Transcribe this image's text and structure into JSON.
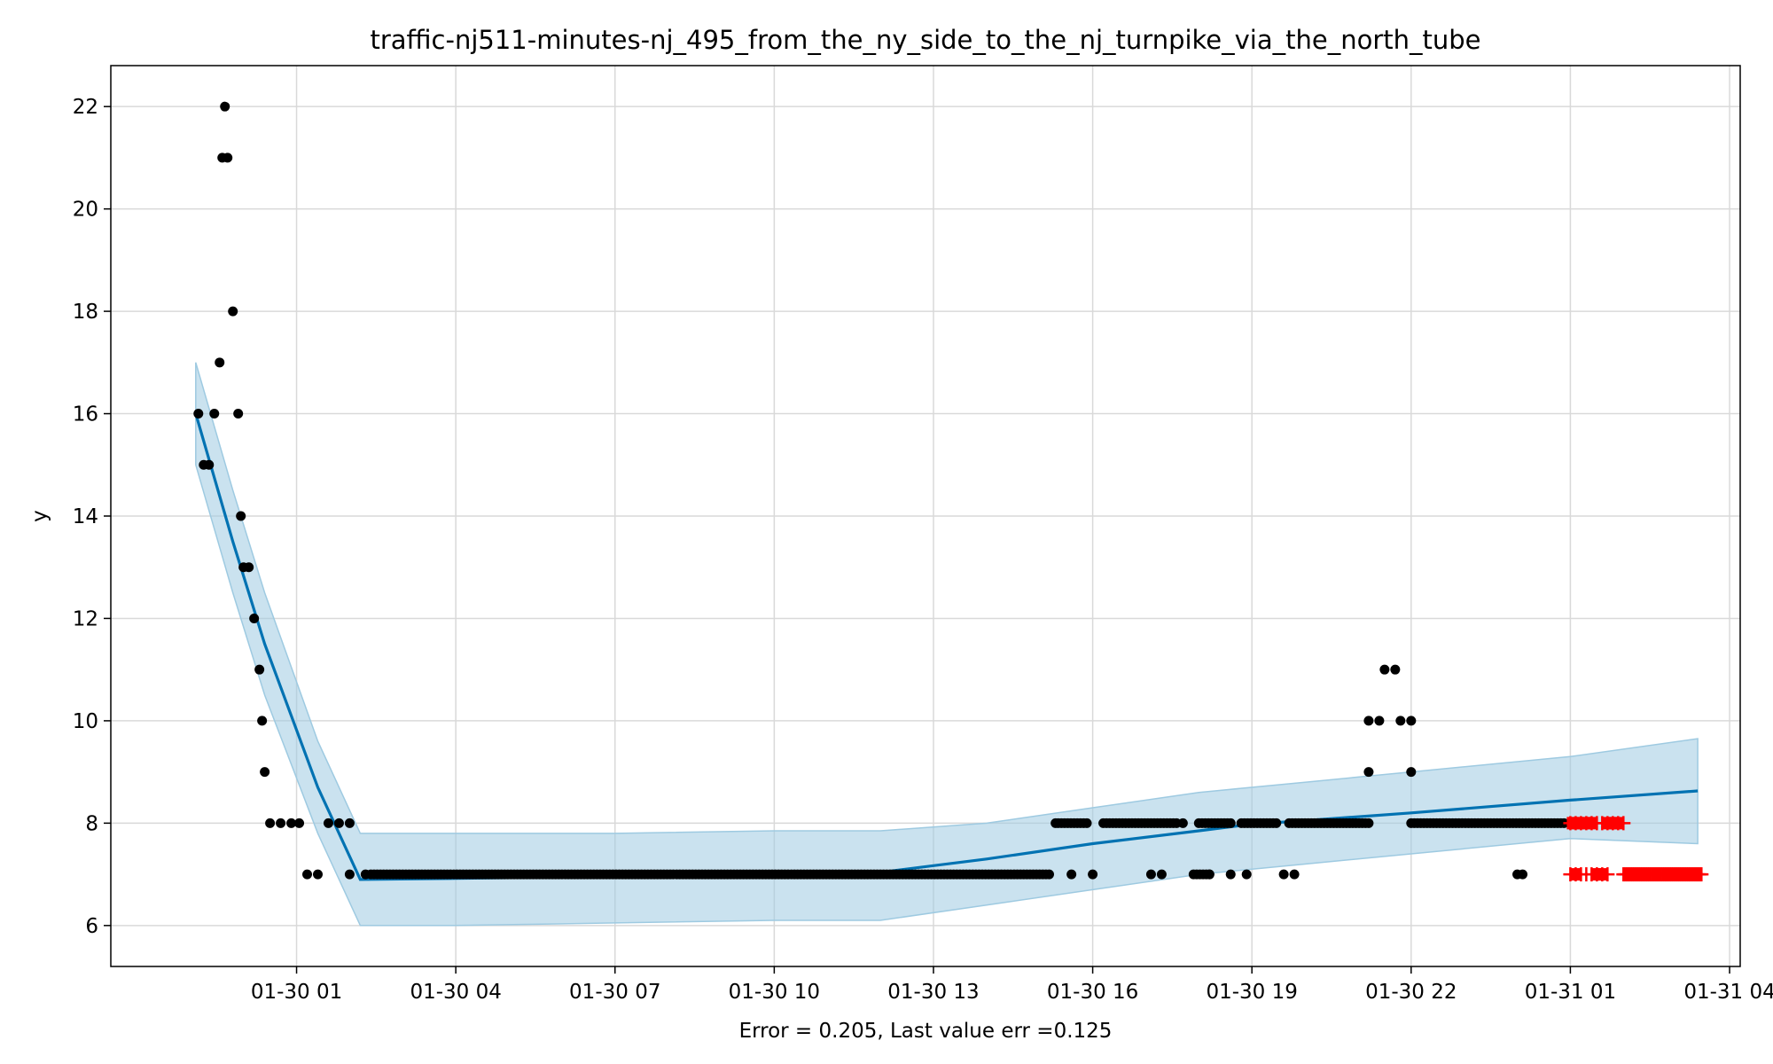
{
  "chart_data": {
    "type": "scatter",
    "title": "traffic-nj511-minutes-nj_495_from_the_ny_side_to_the_nj_turnpike_via_the_north_tube",
    "xlabel": "Error = 0.205, Last value err =0.125",
    "ylabel": "y",
    "x_unit": "hours after 01-30 00:00",
    "xlim": [
      -2.5,
      28.2
    ],
    "ylim": [
      5.2,
      22.8
    ],
    "x_ticks": [
      {
        "value": 1,
        "label": "01-30 01"
      },
      {
        "value": 4,
        "label": "01-30 04"
      },
      {
        "value": 7,
        "label": "01-30 07"
      },
      {
        "value": 10,
        "label": "01-30 10"
      },
      {
        "value": 13,
        "label": "01-30 13"
      },
      {
        "value": 16,
        "label": "01-30 16"
      },
      {
        "value": 19,
        "label": "01-30 19"
      },
      {
        "value": 22,
        "label": "01-30 22"
      },
      {
        "value": 25,
        "label": "01-31 01"
      },
      {
        "value": 28,
        "label": "01-31 04"
      }
    ],
    "y_ticks": [
      {
        "value": 6,
        "label": "6"
      },
      {
        "value": 8,
        "label": "8"
      },
      {
        "value": 10,
        "label": "10"
      },
      {
        "value": 12,
        "label": "12"
      },
      {
        "value": 14,
        "label": "14"
      },
      {
        "value": 16,
        "label": "16"
      },
      {
        "value": 18,
        "label": "18"
      },
      {
        "value": 20,
        "label": "20"
      },
      {
        "value": 22,
        "label": "22"
      }
    ],
    "grid": true,
    "colors": {
      "forecast_line": "#0072B2",
      "band": "#9ecae1",
      "observed": "#000000",
      "future": "#ff0000",
      "grid": "#d9d9d9"
    },
    "forecast": {
      "x": [
        -0.9,
        -0.2,
        0.4,
        1.4,
        2.2,
        4,
        7,
        10,
        12,
        14,
        16,
        18,
        19,
        20,
        22,
        25,
        27.4
      ],
      "y": [
        16.0,
        13.5,
        11.5,
        8.7,
        6.9,
        6.92,
        6.96,
        7.0,
        7.04,
        7.3,
        7.6,
        7.85,
        7.98,
        8.05,
        8.2,
        8.45,
        8.63
      ]
    },
    "band": {
      "x": [
        -0.9,
        -0.2,
        0.4,
        1.4,
        2.2,
        4,
        7,
        10,
        12,
        14,
        16,
        18,
        20,
        22,
        25,
        27.4
      ],
      "upper": [
        17.0,
        14.5,
        12.5,
        9.6,
        7.8,
        7.8,
        7.8,
        7.85,
        7.85,
        8.0,
        8.3,
        8.6,
        8.8,
        9.0,
        9.3,
        9.65
      ],
      "lower": [
        15.0,
        12.5,
        10.5,
        7.8,
        6.0,
        6.0,
        6.05,
        6.1,
        6.1,
        6.4,
        6.7,
        7.0,
        7.2,
        7.4,
        7.7,
        7.6
      ]
    },
    "series": [
      {
        "name": "",
        "points": [
          [
            -0.85,
            16
          ],
          [
            -0.75,
            15
          ],
          [
            -0.65,
            15
          ],
          [
            -0.55,
            16
          ],
          [
            -0.45,
            17
          ],
          [
            -0.35,
            22
          ],
          [
            -0.4,
            21
          ],
          [
            -0.3,
            21
          ],
          [
            -0.2,
            18
          ],
          [
            -0.1,
            16
          ],
          [
            -0.05,
            14
          ],
          [
            0.0,
            13
          ],
          [
            0.1,
            13
          ],
          [
            0.2,
            12
          ],
          [
            0.3,
            11
          ],
          [
            0.35,
            10
          ],
          [
            0.4,
            9
          ],
          [
            0.5,
            8
          ],
          [
            0.7,
            8
          ],
          [
            0.9,
            8
          ],
          [
            1.05,
            8
          ],
          [
            1.2,
            7
          ],
          [
            1.4,
            7
          ],
          [
            1.6,
            8
          ],
          [
            1.8,
            8
          ],
          [
            2.0,
            8
          ],
          [
            2.0,
            7
          ],
          [
            2.3,
            7
          ],
          [
            15.3,
            8
          ],
          [
            15.6,
            7
          ],
          [
            16.0,
            7
          ],
          [
            17.1,
            7
          ],
          [
            17.3,
            7
          ],
          [
            17.7,
            8
          ],
          [
            18.2,
            7
          ],
          [
            18.6,
            7
          ],
          [
            18.9,
            7
          ],
          [
            19.6,
            7
          ],
          [
            19.8,
            7
          ],
          [
            21.2,
            9
          ],
          [
            21.2,
            10
          ],
          [
            21.4,
            10
          ],
          [
            21.5,
            11
          ],
          [
            21.7,
            11
          ],
          [
            21.8,
            10
          ],
          [
            22.0,
            10
          ],
          [
            22.0,
            9
          ],
          [
            24.0,
            7
          ],
          [
            24.1,
            7
          ]
        ],
        "runs": [
          {
            "from": 2.4,
            "to": 15.2,
            "y": 7
          },
          {
            "from": 15.35,
            "to": 15.9,
            "y": 8
          },
          {
            "from": 16.2,
            "to": 17.6,
            "y": 8
          },
          {
            "from": 17.9,
            "to": 18.2,
            "y": 7
          },
          {
            "from": 18.0,
            "to": 18.6,
            "y": 8
          },
          {
            "from": 18.8,
            "to": 19.5,
            "y": 8
          },
          {
            "from": 19.7,
            "to": 21.2,
            "y": 8
          },
          {
            "from": 22.0,
            "to": 24.9,
            "y": 8
          }
        ]
      },
      {
        "name": "",
        "marker": "+",
        "color": "#ff0000",
        "points": [
          [
            25.05,
            8
          ],
          [
            25.15,
            8
          ],
          [
            25.3,
            8
          ],
          [
            25.4,
            8
          ],
          [
            25.7,
            8
          ],
          [
            25.8,
            8
          ],
          [
            25.9,
            8
          ],
          [
            25.1,
            7
          ],
          [
            25.5,
            7
          ],
          [
            25.6,
            7
          ]
        ],
        "runs": [
          {
            "from": 25.0,
            "to": 26.0,
            "y": 8,
            "dense": false
          },
          {
            "from": 25.0,
            "to": 25.7,
            "y": 7,
            "dense": false
          },
          {
            "from": 26.0,
            "to": 27.5,
            "y": 7,
            "dense": true
          }
        ]
      }
    ]
  }
}
